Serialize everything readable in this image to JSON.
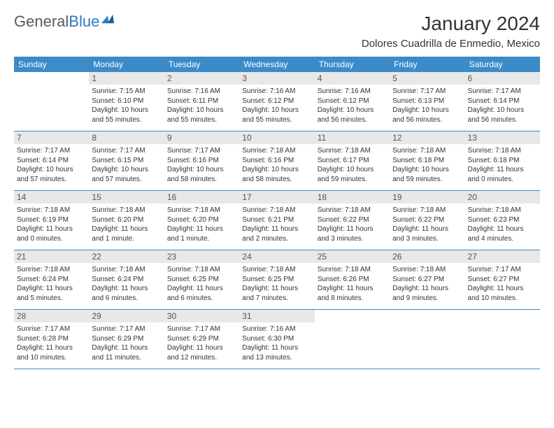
{
  "logo": {
    "part1": "General",
    "part2": "Blue"
  },
  "title": "January 2024",
  "location": "Dolores Cuadrilla de Enmedio, Mexico",
  "colors": {
    "header_bg": "#3b8bc9",
    "header_text": "#ffffff",
    "daynum_bg": "#e8e8e8",
    "text": "#333333",
    "rule": "#3b8bc9"
  },
  "days_of_week": [
    "Sunday",
    "Monday",
    "Tuesday",
    "Wednesday",
    "Thursday",
    "Friday",
    "Saturday"
  ],
  "weeks": [
    [
      {
        "n": "",
        "sr": "",
        "ss": "",
        "dl1": "",
        "dl2": ""
      },
      {
        "n": "1",
        "sr": "Sunrise: 7:15 AM",
        "ss": "Sunset: 6:10 PM",
        "dl1": "Daylight: 10 hours",
        "dl2": "and 55 minutes."
      },
      {
        "n": "2",
        "sr": "Sunrise: 7:16 AM",
        "ss": "Sunset: 6:11 PM",
        "dl1": "Daylight: 10 hours",
        "dl2": "and 55 minutes."
      },
      {
        "n": "3",
        "sr": "Sunrise: 7:16 AM",
        "ss": "Sunset: 6:12 PM",
        "dl1": "Daylight: 10 hours",
        "dl2": "and 55 minutes."
      },
      {
        "n": "4",
        "sr": "Sunrise: 7:16 AM",
        "ss": "Sunset: 6:12 PM",
        "dl1": "Daylight: 10 hours",
        "dl2": "and 56 minutes."
      },
      {
        "n": "5",
        "sr": "Sunrise: 7:17 AM",
        "ss": "Sunset: 6:13 PM",
        "dl1": "Daylight: 10 hours",
        "dl2": "and 56 minutes."
      },
      {
        "n": "6",
        "sr": "Sunrise: 7:17 AM",
        "ss": "Sunset: 6:14 PM",
        "dl1": "Daylight: 10 hours",
        "dl2": "and 56 minutes."
      }
    ],
    [
      {
        "n": "7",
        "sr": "Sunrise: 7:17 AM",
        "ss": "Sunset: 6:14 PM",
        "dl1": "Daylight: 10 hours",
        "dl2": "and 57 minutes."
      },
      {
        "n": "8",
        "sr": "Sunrise: 7:17 AM",
        "ss": "Sunset: 6:15 PM",
        "dl1": "Daylight: 10 hours",
        "dl2": "and 57 minutes."
      },
      {
        "n": "9",
        "sr": "Sunrise: 7:17 AM",
        "ss": "Sunset: 6:16 PM",
        "dl1": "Daylight: 10 hours",
        "dl2": "and 58 minutes."
      },
      {
        "n": "10",
        "sr": "Sunrise: 7:18 AM",
        "ss": "Sunset: 6:16 PM",
        "dl1": "Daylight: 10 hours",
        "dl2": "and 58 minutes."
      },
      {
        "n": "11",
        "sr": "Sunrise: 7:18 AM",
        "ss": "Sunset: 6:17 PM",
        "dl1": "Daylight: 10 hours",
        "dl2": "and 59 minutes."
      },
      {
        "n": "12",
        "sr": "Sunrise: 7:18 AM",
        "ss": "Sunset: 6:18 PM",
        "dl1": "Daylight: 10 hours",
        "dl2": "and 59 minutes."
      },
      {
        "n": "13",
        "sr": "Sunrise: 7:18 AM",
        "ss": "Sunset: 6:18 PM",
        "dl1": "Daylight: 11 hours",
        "dl2": "and 0 minutes."
      }
    ],
    [
      {
        "n": "14",
        "sr": "Sunrise: 7:18 AM",
        "ss": "Sunset: 6:19 PM",
        "dl1": "Daylight: 11 hours",
        "dl2": "and 0 minutes."
      },
      {
        "n": "15",
        "sr": "Sunrise: 7:18 AM",
        "ss": "Sunset: 6:20 PM",
        "dl1": "Daylight: 11 hours",
        "dl2": "and 1 minute."
      },
      {
        "n": "16",
        "sr": "Sunrise: 7:18 AM",
        "ss": "Sunset: 6:20 PM",
        "dl1": "Daylight: 11 hours",
        "dl2": "and 1 minute."
      },
      {
        "n": "17",
        "sr": "Sunrise: 7:18 AM",
        "ss": "Sunset: 6:21 PM",
        "dl1": "Daylight: 11 hours",
        "dl2": "and 2 minutes."
      },
      {
        "n": "18",
        "sr": "Sunrise: 7:18 AM",
        "ss": "Sunset: 6:22 PM",
        "dl1": "Daylight: 11 hours",
        "dl2": "and 3 minutes."
      },
      {
        "n": "19",
        "sr": "Sunrise: 7:18 AM",
        "ss": "Sunset: 6:22 PM",
        "dl1": "Daylight: 11 hours",
        "dl2": "and 3 minutes."
      },
      {
        "n": "20",
        "sr": "Sunrise: 7:18 AM",
        "ss": "Sunset: 6:23 PM",
        "dl1": "Daylight: 11 hours",
        "dl2": "and 4 minutes."
      }
    ],
    [
      {
        "n": "21",
        "sr": "Sunrise: 7:18 AM",
        "ss": "Sunset: 6:24 PM",
        "dl1": "Daylight: 11 hours",
        "dl2": "and 5 minutes."
      },
      {
        "n": "22",
        "sr": "Sunrise: 7:18 AM",
        "ss": "Sunset: 6:24 PM",
        "dl1": "Daylight: 11 hours",
        "dl2": "and 6 minutes."
      },
      {
        "n": "23",
        "sr": "Sunrise: 7:18 AM",
        "ss": "Sunset: 6:25 PM",
        "dl1": "Daylight: 11 hours",
        "dl2": "and 6 minutes."
      },
      {
        "n": "24",
        "sr": "Sunrise: 7:18 AM",
        "ss": "Sunset: 6:25 PM",
        "dl1": "Daylight: 11 hours",
        "dl2": "and 7 minutes."
      },
      {
        "n": "25",
        "sr": "Sunrise: 7:18 AM",
        "ss": "Sunset: 6:26 PM",
        "dl1": "Daylight: 11 hours",
        "dl2": "and 8 minutes."
      },
      {
        "n": "26",
        "sr": "Sunrise: 7:18 AM",
        "ss": "Sunset: 6:27 PM",
        "dl1": "Daylight: 11 hours",
        "dl2": "and 9 minutes."
      },
      {
        "n": "27",
        "sr": "Sunrise: 7:17 AM",
        "ss": "Sunset: 6:27 PM",
        "dl1": "Daylight: 11 hours",
        "dl2": "and 10 minutes."
      }
    ],
    [
      {
        "n": "28",
        "sr": "Sunrise: 7:17 AM",
        "ss": "Sunset: 6:28 PM",
        "dl1": "Daylight: 11 hours",
        "dl2": "and 10 minutes."
      },
      {
        "n": "29",
        "sr": "Sunrise: 7:17 AM",
        "ss": "Sunset: 6:29 PM",
        "dl1": "Daylight: 11 hours",
        "dl2": "and 11 minutes."
      },
      {
        "n": "30",
        "sr": "Sunrise: 7:17 AM",
        "ss": "Sunset: 6:29 PM",
        "dl1": "Daylight: 11 hours",
        "dl2": "and 12 minutes."
      },
      {
        "n": "31",
        "sr": "Sunrise: 7:16 AM",
        "ss": "Sunset: 6:30 PM",
        "dl1": "Daylight: 11 hours",
        "dl2": "and 13 minutes."
      },
      {
        "n": "",
        "sr": "",
        "ss": "",
        "dl1": "",
        "dl2": ""
      },
      {
        "n": "",
        "sr": "",
        "ss": "",
        "dl1": "",
        "dl2": ""
      },
      {
        "n": "",
        "sr": "",
        "ss": "",
        "dl1": "",
        "dl2": ""
      }
    ]
  ]
}
